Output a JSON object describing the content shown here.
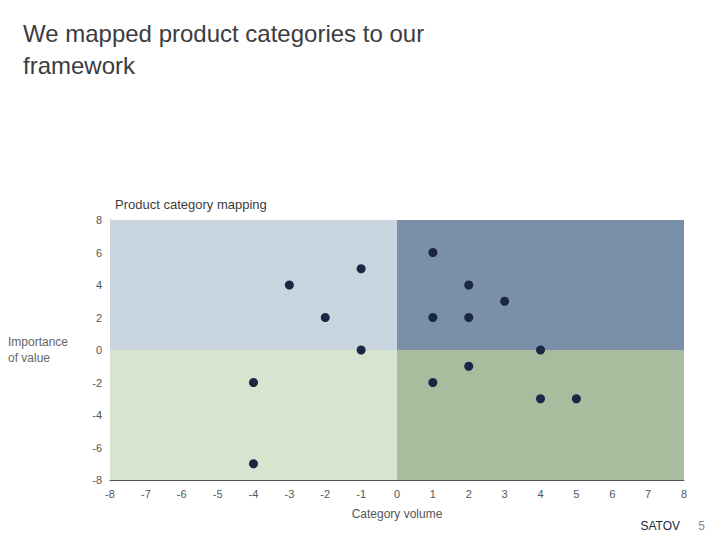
{
  "chart_data": {
    "type": "scatter",
    "title": "We mapped product categories to our\nframework",
    "subtitle": "Product category mapping",
    "xlabel": "Category volume",
    "ylabel": "Importance\nof value",
    "x": [
      -3,
      -2,
      -1,
      1,
      1,
      2,
      2,
      3,
      -1,
      -4,
      -4,
      4,
      1,
      2,
      4,
      5
    ],
    "values": [
      4,
      2,
      5,
      6,
      2,
      4,
      2,
      3,
      0,
      -2,
      -7,
      0,
      -2,
      -1,
      -3,
      -3
    ],
    "color": "#1a2744",
    "xlim": [
      -8,
      8
    ],
    "ylim": [
      -8,
      8
    ],
    "xticks": [
      -8,
      -7,
      -6,
      -5,
      -4,
      -3,
      -2,
      -1,
      0,
      1,
      2,
      3,
      4,
      5,
      6,
      7,
      8
    ],
    "yticks": [
      -8,
      -6,
      -4,
      -2,
      0,
      2,
      4,
      6,
      8
    ],
    "grid": false,
    "quadrants": [
      {
        "color": "#c8d4de",
        "x": [
          -8,
          0
        ],
        "y": [
          0,
          8
        ]
      },
      {
        "color": "#7a8fa8",
        "x": [
          0,
          8
        ],
        "y": [
          0,
          8
        ]
      },
      {
        "color": "#d6e4d0",
        "x": [
          -8,
          0
        ],
        "y": [
          -8,
          0
        ]
      },
      {
        "color": "#a8bc9e",
        "x": [
          0,
          8
        ],
        "y": [
          -8,
          0
        ]
      }
    ],
    "annotations": [
      {
        "text": "SATOV"
      },
      {
        "text": "5"
      }
    ]
  }
}
